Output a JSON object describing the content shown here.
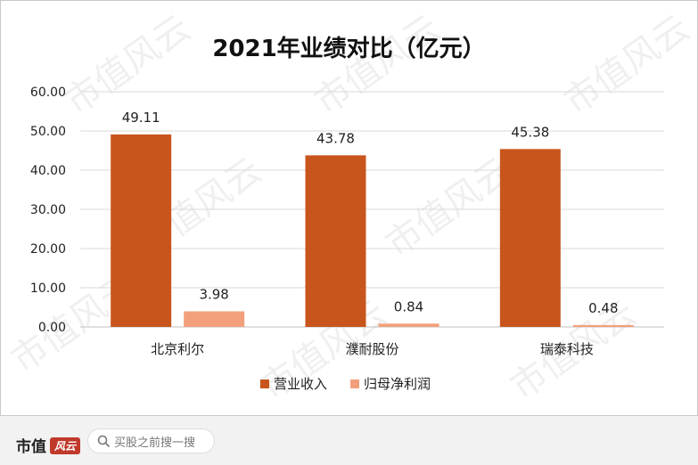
{
  "chart_data": {
    "type": "bar",
    "title": "2021年业绩对比（亿元）",
    "categories": [
      "北京利尔",
      "濮耐股份",
      "瑞泰科技"
    ],
    "series": [
      {
        "name": "营业收入",
        "values": [
          49.11,
          43.78,
          45.38
        ],
        "labels": [
          "49.11",
          "43.78",
          "45.38"
        ],
        "color": "#c8561c"
      },
      {
        "name": "归母净利润",
        "values": [
          3.98,
          0.84,
          0.48
        ],
        "labels": [
          "3.98",
          "0.84",
          "0.48"
        ],
        "color": "#f2a07b"
      }
    ],
    "y_ticks": [
      "60.00",
      "50.00",
      "40.00",
      "30.00",
      "20.00",
      "10.00",
      "0.00"
    ],
    "ylim": [
      0,
      60
    ],
    "grid": true,
    "legend_position": "bottom"
  },
  "watermark": "市值风云",
  "footer": {
    "brand": "市值",
    "brand_logo": "风云",
    "search_placeholder": "买股之前搜一搜"
  }
}
